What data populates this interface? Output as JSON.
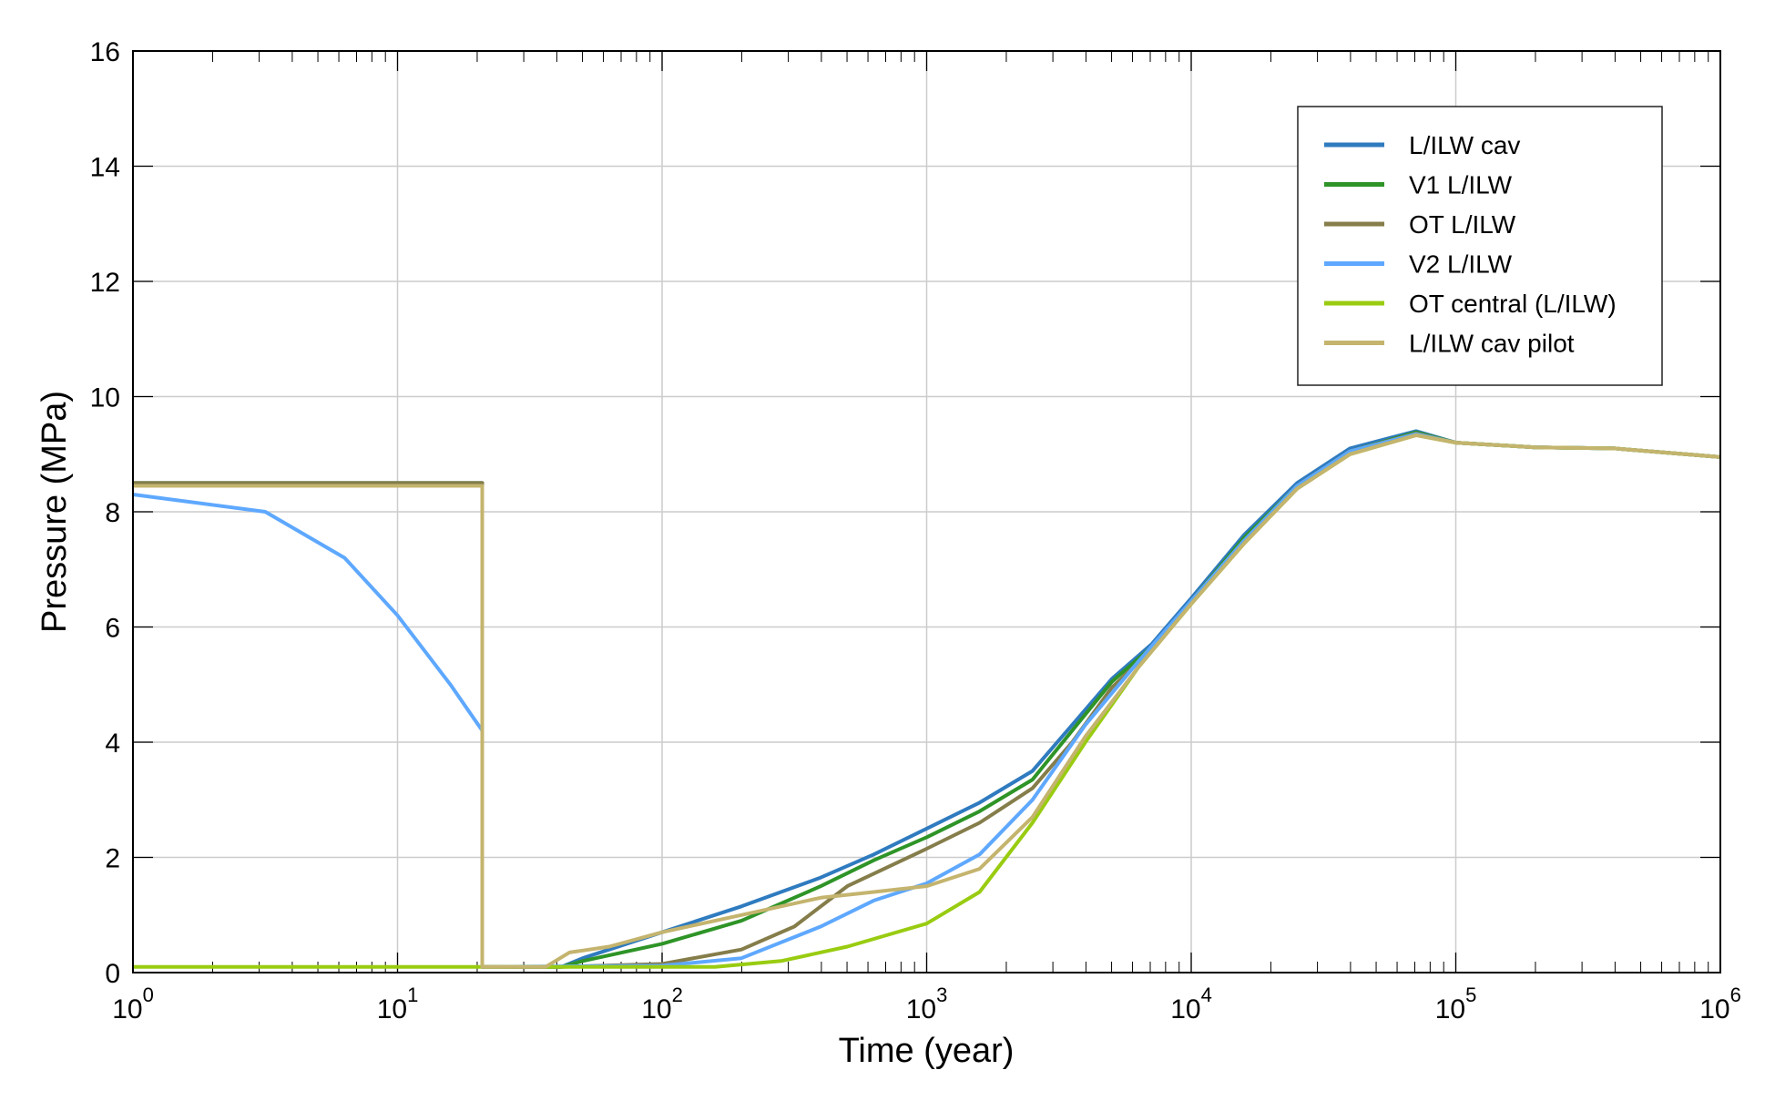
{
  "chart_data": {
    "type": "line",
    "title": "",
    "xlabel": "Time (year)",
    "ylabel": "Pressure (MPa)",
    "xscale": "log",
    "xlim": [
      1,
      1000000
    ],
    "ylim": [
      0,
      16
    ],
    "grid": true,
    "legend_position": "top-right",
    "x_ticks": [
      {
        "base": "10",
        "exp": "0"
      },
      {
        "base": "10",
        "exp": "1"
      },
      {
        "base": "10",
        "exp": "2"
      },
      {
        "base": "10",
        "exp": "3"
      },
      {
        "base": "10",
        "exp": "4"
      },
      {
        "base": "10",
        "exp": "5"
      },
      {
        "base": "10",
        "exp": "6"
      }
    ],
    "y_ticks": [
      "0",
      "2",
      "4",
      "6",
      "8",
      "10",
      "12",
      "14",
      "16"
    ],
    "series": [
      {
        "name": "L/ILW cav",
        "color": "#2f7bbf",
        "points": [
          [
            0,
            8.5
          ],
          [
            1.32,
            8.5
          ],
          [
            1.32,
            0.1
          ],
          [
            1.62,
            0.1
          ],
          [
            1.7,
            0.25
          ],
          [
            2,
            0.7
          ],
          [
            2.3,
            1.15
          ],
          [
            2.6,
            1.65
          ],
          [
            2.8,
            2.05
          ],
          [
            3,
            2.5
          ],
          [
            3.2,
            2.95
          ],
          [
            3.4,
            3.5
          ],
          [
            3.55,
            4.3
          ],
          [
            3.7,
            5.1
          ],
          [
            3.85,
            5.7
          ],
          [
            4,
            6.5
          ],
          [
            4.2,
            7.6
          ],
          [
            4.4,
            8.5
          ],
          [
            4.6,
            9.1
          ],
          [
            4.85,
            9.4
          ],
          [
            5,
            9.2
          ],
          [
            5.3,
            9.12
          ],
          [
            5.6,
            9.1
          ],
          [
            6,
            8.95
          ]
        ]
      },
      {
        "name": "V1 L/ILW",
        "color": "#2e9427",
        "points": [
          [
            0,
            8.5
          ],
          [
            1.32,
            8.5
          ],
          [
            1.32,
            0.1
          ],
          [
            1.62,
            0.1
          ],
          [
            1.7,
            0.2
          ],
          [
            2,
            0.5
          ],
          [
            2.3,
            0.9
          ],
          [
            2.6,
            1.5
          ],
          [
            2.8,
            1.95
          ],
          [
            3,
            2.35
          ],
          [
            3.2,
            2.8
          ],
          [
            3.4,
            3.35
          ],
          [
            3.55,
            4.2
          ],
          [
            3.7,
            5.05
          ],
          [
            3.85,
            5.65
          ],
          [
            4,
            6.45
          ],
          [
            4.2,
            7.55
          ],
          [
            4.4,
            8.45
          ],
          [
            4.6,
            9.05
          ],
          [
            4.85,
            9.38
          ],
          [
            5,
            9.2
          ],
          [
            5.3,
            9.12
          ],
          [
            5.6,
            9.1
          ],
          [
            6,
            8.95
          ]
        ]
      },
      {
        "name": "OT L/ILW",
        "color": "#857d4a",
        "points": [
          [
            0,
            8.5
          ],
          [
            1.32,
            8.5
          ],
          [
            1.32,
            0.1
          ],
          [
            1.62,
            0.1
          ],
          [
            2,
            0.15
          ],
          [
            2.3,
            0.4
          ],
          [
            2.5,
            0.8
          ],
          [
            2.7,
            1.5
          ],
          [
            3,
            2.15
          ],
          [
            3.2,
            2.6
          ],
          [
            3.4,
            3.2
          ],
          [
            3.55,
            4.0
          ],
          [
            3.7,
            4.95
          ],
          [
            3.85,
            5.6
          ],
          [
            4,
            6.45
          ],
          [
            4.2,
            7.5
          ],
          [
            4.4,
            8.45
          ],
          [
            4.6,
            9.05
          ],
          [
            4.85,
            9.36
          ],
          [
            5,
            9.2
          ],
          [
            5.3,
            9.12
          ],
          [
            5.6,
            9.1
          ],
          [
            6,
            8.95
          ]
        ]
      },
      {
        "name": "V2 L/ILW",
        "color": "#5ea8ff",
        "points": [
          [
            0,
            8.3
          ],
          [
            0.5,
            8.0
          ],
          [
            0.8,
            7.2
          ],
          [
            1,
            6.2
          ],
          [
            1.2,
            5
          ],
          [
            1.32,
            4.2
          ],
          [
            1.32,
            0.1
          ],
          [
            2,
            0.12
          ],
          [
            2.3,
            0.25
          ],
          [
            2.6,
            0.8
          ],
          [
            2.8,
            1.25
          ],
          [
            3,
            1.55
          ],
          [
            3.2,
            2.05
          ],
          [
            3.4,
            3.0
          ],
          [
            3.6,
            4.3
          ],
          [
            3.8,
            5.4
          ],
          [
            4,
            6.45
          ],
          [
            4.2,
            7.5
          ],
          [
            4.4,
            8.45
          ],
          [
            4.6,
            9.05
          ],
          [
            4.85,
            9.35
          ],
          [
            5,
            9.2
          ],
          [
            5.3,
            9.12
          ],
          [
            5.6,
            9.1
          ],
          [
            6,
            8.95
          ]
        ]
      },
      {
        "name": "OT central (L/ILW)",
        "color": "#99cc11",
        "points": [
          [
            0,
            0.1
          ],
          [
            2.2,
            0.1
          ],
          [
            2.45,
            0.2
          ],
          [
            2.7,
            0.45
          ],
          [
            3,
            0.85
          ],
          [
            3.2,
            1.4
          ],
          [
            3.4,
            2.6
          ],
          [
            3.6,
            4.0
          ],
          [
            3.8,
            5.3
          ],
          [
            4,
            6.4
          ],
          [
            4.2,
            7.45
          ],
          [
            4.4,
            8.4
          ],
          [
            4.6,
            9.0
          ],
          [
            4.85,
            9.33
          ],
          [
            5,
            9.2
          ],
          [
            5.3,
            9.12
          ],
          [
            5.6,
            9.1
          ],
          [
            6,
            8.95
          ]
        ]
      },
      {
        "name": "L/ILW cav pilot",
        "color": "#c4b46e",
        "points": [
          [
            0,
            8.45
          ],
          [
            1.32,
            8.45
          ],
          [
            1.32,
            0.1
          ],
          [
            1.56,
            0.1
          ],
          [
            1.65,
            0.35
          ],
          [
            1.8,
            0.45
          ],
          [
            2,
            0.7
          ],
          [
            2.3,
            1.0
          ],
          [
            2.6,
            1.3
          ],
          [
            2.8,
            1.4
          ],
          [
            3,
            1.5
          ],
          [
            3.2,
            1.8
          ],
          [
            3.4,
            2.7
          ],
          [
            3.6,
            4.1
          ],
          [
            3.8,
            5.3
          ],
          [
            4,
            6.4
          ],
          [
            4.2,
            7.45
          ],
          [
            4.4,
            8.4
          ],
          [
            4.6,
            9.0
          ],
          [
            4.85,
            9.33
          ],
          [
            5,
            9.2
          ],
          [
            5.3,
            9.12
          ],
          [
            5.6,
            9.1
          ],
          [
            6,
            8.95
          ]
        ]
      }
    ]
  }
}
